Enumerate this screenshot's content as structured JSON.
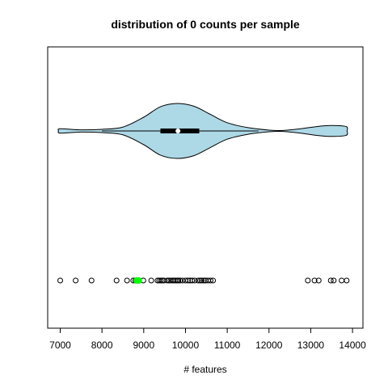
{
  "chart_data": {
    "type": "violin",
    "title": "distribution of 0 counts per sample",
    "xlabel": "# features",
    "ylabel": "",
    "xlim": [
      6700,
      14250
    ],
    "xticks": [
      7000,
      8000,
      9000,
      10000,
      11000,
      12000,
      13000,
      14000
    ],
    "grid": false,
    "colors": {
      "violin_fill": "#add8e6",
      "outline": "#000000",
      "highlight": "#00ff00",
      "median": "#ffffff"
    },
    "violin": {
      "min": 7000,
      "max": 13850,
      "whisker_low": 8000,
      "whisker_high": 11750,
      "q1": 9400,
      "median": 9820,
      "q3": 10330,
      "density": [
        [
          6960,
          0.0
        ],
        [
          7000,
          0.08
        ],
        [
          7500,
          0.04
        ],
        [
          8000,
          0.06
        ],
        [
          8500,
          0.14
        ],
        [
          9000,
          0.5
        ],
        [
          9400,
          0.88
        ],
        [
          9800,
          1.0
        ],
        [
          10200,
          0.9
        ],
        [
          10600,
          0.6
        ],
        [
          11000,
          0.3
        ],
        [
          11500,
          0.12
        ],
        [
          12000,
          0.03
        ],
        [
          12300,
          0.015
        ],
        [
          12700,
          0.07
        ],
        [
          13200,
          0.17
        ],
        [
          13500,
          0.2
        ],
        [
          13850,
          0.16
        ],
        [
          13870,
          0.0
        ]
      ]
    },
    "points": [
      7000,
      7370,
      7750,
      8350,
      8600,
      8750,
      8800,
      8880,
      8990,
      9180,
      9330,
      9370,
      9410,
      9450,
      9480,
      9560,
      9600,
      9640,
      9690,
      9720,
      9760,
      9800,
      9830,
      9870,
      9930,
      10000,
      10060,
      10110,
      10160,
      10220,
      10300,
      10350,
      10390,
      10440,
      10480,
      10540,
      10600,
      10660,
      12930,
      13090,
      13190,
      13480,
      13550,
      13740,
      13860
    ],
    "highlight_points": [
      8830,
      8880
    ]
  }
}
